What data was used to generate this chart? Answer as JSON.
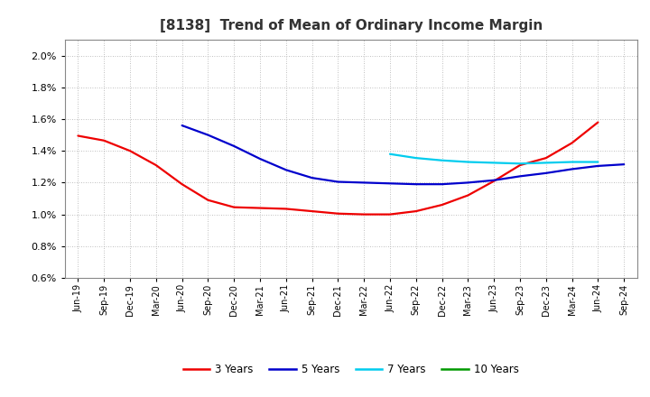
{
  "title": "[8138]  Trend of Mean of Ordinary Income Margin",
  "title_fontsize": 11,
  "background_color": "#ffffff",
  "plot_bg_color": "#ffffff",
  "grid_color": "#aaaaaa",
  "ylim": [
    0.006,
    0.021
  ],
  "yticks": [
    0.006,
    0.008,
    0.01,
    0.012,
    0.014,
    0.016,
    0.018,
    0.02
  ],
  "x_labels": [
    "Jun-19",
    "Sep-19",
    "Dec-19",
    "Mar-20",
    "Jun-20",
    "Sep-20",
    "Dec-20",
    "Mar-21",
    "Jun-21",
    "Sep-21",
    "Dec-21",
    "Mar-22",
    "Jun-22",
    "Sep-22",
    "Dec-22",
    "Mar-23",
    "Jun-23",
    "Sep-23",
    "Dec-23",
    "Mar-24",
    "Jun-24",
    "Sep-24"
  ],
  "series": {
    "3 Years": {
      "color": "#ee0000",
      "linewidth": 1.6,
      "values": [
        0.01495,
        0.01465,
        0.014,
        0.0131,
        0.0119,
        0.0109,
        0.01045,
        0.0104,
        0.01035,
        0.0102,
        0.01005,
        0.01,
        0.01,
        0.0102,
        0.0106,
        0.0112,
        0.0121,
        0.0131,
        0.01355,
        0.0145,
        0.0158,
        null
      ]
    },
    "5 Years": {
      "color": "#0000cc",
      "linewidth": 1.6,
      "values": [
        null,
        null,
        null,
        null,
        0.0156,
        0.015,
        0.0143,
        0.0135,
        0.0128,
        0.0123,
        0.01205,
        0.012,
        0.01195,
        0.0119,
        0.0119,
        0.012,
        0.01215,
        0.0124,
        0.0126,
        0.01285,
        0.01305,
        0.01315
      ]
    },
    "7 Years": {
      "color": "#00ccee",
      "linewidth": 1.6,
      "values": [
        null,
        null,
        null,
        null,
        null,
        null,
        null,
        null,
        null,
        null,
        null,
        null,
        0.0138,
        0.01355,
        0.0134,
        0.0133,
        0.01325,
        0.0132,
        0.01325,
        0.0133,
        0.0133,
        null
      ]
    },
    "10 Years": {
      "color": "#009900",
      "linewidth": 1.6,
      "values": [
        null,
        null,
        null,
        null,
        null,
        null,
        null,
        null,
        null,
        null,
        null,
        null,
        null,
        null,
        null,
        null,
        null,
        null,
        null,
        null,
        null,
        null
      ]
    }
  },
  "legend_colors": [
    "#ee0000",
    "#0000cc",
    "#00ccee",
    "#009900"
  ],
  "legend_labels": [
    "3 Years",
    "5 Years",
    "7 Years",
    "10 Years"
  ]
}
